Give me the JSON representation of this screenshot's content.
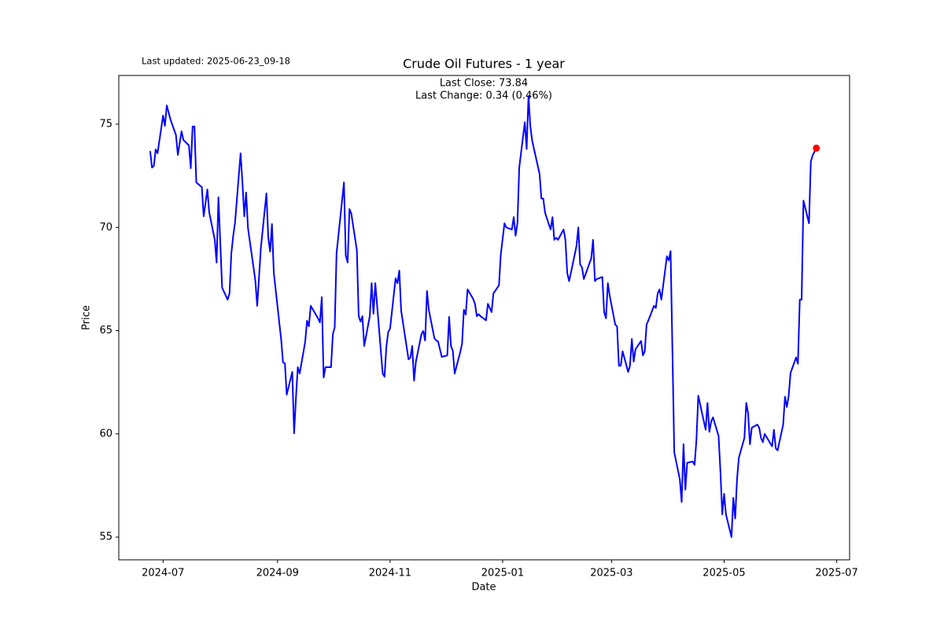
{
  "chart_data": {
    "type": "line",
    "title": "Crude Oil Futures - 1 year",
    "subtitle": "Last updated: 2025-06-23_09-18",
    "annotations": [
      "Last Close: 73.84",
      "Last Change: 0.34 (0.46%)"
    ],
    "x_label": "Date",
    "y_label": "Price",
    "color": "#0000ff",
    "last_point_color": "#ff0000",
    "x": [
      "2024-06-24",
      "2024-06-25",
      "2024-06-26",
      "2024-06-27",
      "2024-06-28",
      "2024-07-01",
      "2024-07-02",
      "2024-07-03",
      "2024-07-05",
      "2024-07-08",
      "2024-07-09",
      "2024-07-11",
      "2024-07-12",
      "2024-07-15",
      "2024-07-16",
      "2024-07-17",
      "2024-07-18",
      "2024-07-19",
      "2024-07-22",
      "2024-07-23",
      "2024-07-25",
      "2024-07-26",
      "2024-07-29",
      "2024-07-30",
      "2024-07-31",
      "2024-08-02",
      "2024-08-05",
      "2024-08-06",
      "2024-08-07",
      "2024-08-08",
      "2024-08-09",
      "2024-08-12",
      "2024-08-13",
      "2024-08-14",
      "2024-08-15",
      "2024-08-16",
      "2024-08-19",
      "2024-08-20",
      "2024-08-21",
      "2024-08-23",
      "2024-08-26",
      "2024-08-27",
      "2024-08-28",
      "2024-08-29",
      "2024-08-30",
      "2024-09-03",
      "2024-09-04",
      "2024-09-05",
      "2024-09-06",
      "2024-09-09",
      "2024-09-10",
      "2024-09-11",
      "2024-09-12",
      "2024-09-13",
      "2024-09-16",
      "2024-09-17",
      "2024-09-18",
      "2024-09-19",
      "2024-09-23",
      "2024-09-24",
      "2024-09-25",
      "2024-09-26",
      "2024-09-27",
      "2024-09-30",
      "2024-10-01",
      "2024-10-02",
      "2024-10-03",
      "2024-10-04",
      "2024-10-07",
      "2024-10-08",
      "2024-10-09",
      "2024-10-10",
      "2024-10-11",
      "2024-10-14",
      "2024-10-15",
      "2024-10-16",
      "2024-10-17",
      "2024-10-18",
      "2024-10-21",
      "2024-10-22",
      "2024-10-23",
      "2024-10-24",
      "2024-10-28",
      "2024-10-29",
      "2024-10-30",
      "2024-10-31",
      "2024-11-01",
      "2024-11-04",
      "2024-11-05",
      "2024-11-06",
      "2024-11-07",
      "2024-11-11",
      "2024-11-12",
      "2024-11-13",
      "2024-11-14",
      "2024-11-15",
      "2024-11-18",
      "2024-11-19",
      "2024-11-20",
      "2024-11-21",
      "2024-11-22",
      "2024-11-25",
      "2024-11-26",
      "2024-11-27",
      "2024-11-29",
      "2024-12-02",
      "2024-12-03",
      "2024-12-04",
      "2024-12-05",
      "2024-12-06",
      "2024-12-09",
      "2024-12-10",
      "2024-12-11",
      "2024-12-12",
      "2024-12-13",
      "2024-12-16",
      "2024-12-17",
      "2024-12-18",
      "2024-12-19",
      "2024-12-20",
      "2024-12-23",
      "2024-12-24",
      "2024-12-26",
      "2024-12-27",
      "2024-12-30",
      "2024-12-31",
      "2025-01-02",
      "2025-01-03",
      "2025-01-06",
      "2025-01-07",
      "2025-01-08",
      "2025-01-09",
      "2025-01-10",
      "2025-01-13",
      "2025-01-14",
      "2025-01-15",
      "2025-01-16",
      "2025-01-17",
      "2025-01-21",
      "2025-01-22",
      "2025-01-23",
      "2025-01-24",
      "2025-01-27",
      "2025-01-28",
      "2025-01-29",
      "2025-01-30",
      "2025-01-31",
      "2025-02-03",
      "2025-02-04",
      "2025-02-05",
      "2025-02-06",
      "2025-02-07",
      "2025-02-10",
      "2025-02-11",
      "2025-02-12",
      "2025-02-13",
      "2025-02-14",
      "2025-02-18",
      "2025-02-19",
      "2025-02-20",
      "2025-02-21",
      "2025-02-24",
      "2025-02-25",
      "2025-02-26",
      "2025-02-27",
      "2025-02-28",
      "2025-03-03",
      "2025-03-04",
      "2025-03-05",
      "2025-03-06",
      "2025-03-07",
      "2025-03-10",
      "2025-03-11",
      "2025-03-12",
      "2025-03-13",
      "2025-03-14",
      "2025-03-17",
      "2025-03-18",
      "2025-03-19",
      "2025-03-20",
      "2025-03-21",
      "2025-03-24",
      "2025-03-25",
      "2025-03-26",
      "2025-03-27",
      "2025-03-28",
      "2025-03-31",
      "2025-04-01",
      "2025-04-02",
      "2025-04-03",
      "2025-04-04",
      "2025-04-07",
      "2025-04-08",
      "2025-04-09",
      "2025-04-10",
      "2025-04-11",
      "2025-04-14",
      "2025-04-15",
      "2025-04-16",
      "2025-04-17",
      "2025-04-21",
      "2025-04-22",
      "2025-04-23",
      "2025-04-24",
      "2025-04-25",
      "2025-04-28",
      "2025-04-29",
      "2025-04-30",
      "2025-05-01",
      "2025-05-02",
      "2025-05-05",
      "2025-05-06",
      "2025-05-07",
      "2025-05-08",
      "2025-05-09",
      "2025-05-12",
      "2025-05-13",
      "2025-05-14",
      "2025-05-15",
      "2025-05-16",
      "2025-05-19",
      "2025-05-20",
      "2025-05-21",
      "2025-05-22",
      "2025-05-23",
      "2025-05-27",
      "2025-05-28",
      "2025-05-29",
      "2025-05-30",
      "2025-06-02",
      "2025-06-03",
      "2025-06-04",
      "2025-06-05",
      "2025-06-06",
      "2025-06-09",
      "2025-06-10",
      "2025-06-11",
      "2025-06-12",
      "2025-06-13",
      "2025-06-16",
      "2025-06-17",
      "2025-06-18",
      "2025-06-20"
    ],
    "values": [
      73.7,
      72.9,
      72.98,
      73.78,
      73.59,
      75.42,
      74.92,
      75.91,
      75.23,
      74.47,
      73.51,
      74.66,
      74.24,
      73.97,
      72.87,
      74.89,
      74.89,
      72.18,
      71.95,
      70.54,
      71.84,
      70.73,
      69.4,
      68.3,
      71.46,
      67.08,
      66.5,
      66.81,
      68.75,
      69.59,
      70.24,
      73.59,
      72.18,
      70.54,
      71.69,
      69.97,
      68.07,
      67.42,
      66.2,
      69.02,
      71.65,
      69.51,
      68.83,
      70.16,
      67.8,
      64.56,
      63.46,
      63.42,
      61.9,
      63.0,
      60.03,
      61.75,
      63.23,
      62.92,
      64.45,
      65.48,
      65.21,
      66.2,
      65.59,
      65.4,
      66.62,
      62.73,
      63.23,
      63.23,
      64.83,
      65.17,
      68.75,
      69.59,
      72.18,
      68.64,
      68.3,
      70.89,
      70.66,
      68.9,
      65.7,
      65.44,
      65.7,
      64.26,
      65.7,
      67.3,
      65.82,
      67.3,
      62.92,
      62.77,
      64.22,
      64.94,
      65.1,
      67.54,
      67.3,
      67.91,
      65.97,
      63.61,
      63.69,
      64.26,
      62.58,
      63.5,
      64.83,
      64.98,
      64.52,
      66.92,
      66.01,
      64.64,
      64.52,
      64.48,
      63.73,
      63.8,
      65.67,
      64.26,
      64.02,
      62.92,
      63.95,
      64.37,
      66.01,
      65.78,
      67.0,
      66.54,
      66.3,
      65.7,
      65.8,
      65.7,
      65.5,
      66.3,
      65.9,
      66.8,
      67.2,
      68.7,
      70.2,
      70.0,
      69.9,
      70.5,
      69.6,
      70.2,
      72.9,
      75.1,
      73.8,
      76.37,
      74.9,
      74.2,
      72.6,
      71.4,
      71.4,
      70.7,
      69.9,
      70.5,
      69.4,
      69.5,
      69.4,
      69.9,
      69.4,
      67.8,
      67.4,
      67.8,
      69.1,
      70.0,
      68.2,
      68.07,
      67.5,
      68.5,
      69.4,
      67.4,
      67.5,
      67.6,
      65.9,
      65.6,
      67.3,
      66.7,
      65.3,
      65.2,
      63.3,
      63.3,
      64.0,
      63.0,
      63.3,
      64.6,
      63.5,
      64.1,
      64.5,
      63.8,
      64.0,
      65.3,
      65.5,
      66.2,
      66.1,
      66.8,
      67.0,
      66.5,
      68.6,
      68.4,
      68.85,
      64.0,
      59.1,
      57.8,
      56.7,
      59.5,
      57.3,
      58.6,
      58.66,
      58.5,
      59.7,
      61.85,
      60.2,
      61.5,
      60.1,
      60.6,
      60.8,
      59.9,
      58.2,
      56.1,
      57.1,
      56.1,
      55.0,
      56.9,
      55.9,
      57.8,
      58.85,
      59.8,
      61.5,
      61.0,
      59.5,
      60.3,
      60.45,
      60.3,
      59.8,
      59.6,
      60.0,
      59.4,
      60.2,
      59.3,
      59.2,
      60.45,
      61.8,
      61.3,
      61.85,
      62.95,
      63.7,
      63.4,
      66.5,
      66.5,
      71.3,
      70.2,
      73.2,
      73.5,
      73.84
    ],
    "xlim": [
      "2024-06-07",
      "2025-07-08"
    ],
    "ylim": [
      53.9,
      77.36
    ],
    "xticks": [
      {
        "value": "2024-07-01",
        "label": "2024-07"
      },
      {
        "value": "2024-09-01",
        "label": "2024-09"
      },
      {
        "value": "2024-11-01",
        "label": "2024-11"
      },
      {
        "value": "2025-01-01",
        "label": "2025-01"
      },
      {
        "value": "2025-03-01",
        "label": "2025-03"
      },
      {
        "value": "2025-05-01",
        "label": "2025-05"
      },
      {
        "value": "2025-07-01",
        "label": "2025-07"
      }
    ],
    "yticks": [
      55,
      60,
      65,
      70,
      75
    ],
    "grid": false
  }
}
